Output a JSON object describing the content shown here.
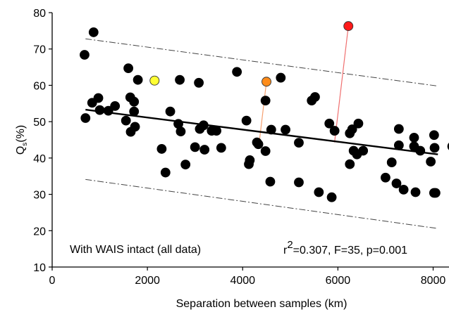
{
  "chart_data": {
    "type": "scatter",
    "xlabel": "Separation between samples (km)",
    "ylabel_main": "Q",
    "ylabel_sub": "s",
    "ylabel_suffix": "(%)",
    "xlim": [
      0,
      8400
    ],
    "ylim": [
      10,
      80
    ],
    "xticks": [
      0,
      2000,
      4000,
      6000,
      8000
    ],
    "yticks": [
      10,
      20,
      30,
      40,
      50,
      60,
      70,
      80
    ],
    "grid": false,
    "panel_label": "With WAIS intact (all data)",
    "stats_r": "r",
    "stats_exp": "2",
    "stats_rest": "=0.307, F=35, p=0.001",
    "regression": {
      "x": [
        700,
        8100
      ],
      "y": [
        53.3,
        41.0
      ]
    },
    "prediction_upper": {
      "x": [
        700,
        8100
      ],
      "y": [
        72.8,
        59.8
      ]
    },
    "prediction_lower": {
      "x": [
        700,
        8100
      ],
      "y": [
        34.1,
        20.6
      ]
    },
    "colors": {
      "points": "#000000",
      "yellow": "#ffff33",
      "orange": "#ff8c1a",
      "red": "#ff1a1a",
      "orange_line": "#f5a070",
      "red_line": "#f07070"
    },
    "highlighted": [
      {
        "x": 2150,
        "y": 61.3,
        "color": "yellow",
        "from": null
      },
      {
        "x": 4500,
        "y": 61.0,
        "color": "orange",
        "from": [
          4350,
          44.5
        ]
      },
      {
        "x": 6220,
        "y": 76.3,
        "color": "red",
        "from": [
          5930,
          44.3
        ]
      }
    ],
    "points": [
      [
        680,
        68.4
      ],
      [
        700,
        51.0
      ],
      [
        870,
        74.6
      ],
      [
        840,
        55.2
      ],
      [
        970,
        56.5
      ],
      [
        1000,
        53.2
      ],
      [
        1180,
        53.0
      ],
      [
        1320,
        54.3
      ],
      [
        1600,
        64.7
      ],
      [
        1550,
        50.3
      ],
      [
        1640,
        56.7
      ],
      [
        1720,
        55.5
      ],
      [
        1650,
        47.2
      ],
      [
        1740,
        48.6
      ],
      [
        1720,
        52.8
      ],
      [
        1800,
        61.5
      ],
      [
        2300,
        42.5
      ],
      [
        2380,
        36.0
      ],
      [
        2480,
        52.8
      ],
      [
        2680,
        61.5
      ],
      [
        2650,
        49.4
      ],
      [
        2700,
        47.3
      ],
      [
        2800,
        38.2
      ],
      [
        3000,
        43.0
      ],
      [
        3080,
        60.7
      ],
      [
        3100,
        48.0
      ],
      [
        3180,
        49.0
      ],
      [
        3200,
        42.3
      ],
      [
        3350,
        47.5
      ],
      [
        3450,
        47.5
      ],
      [
        3550,
        42.8
      ],
      [
        3880,
        63.7
      ],
      [
        4080,
        50.3
      ],
      [
        4130,
        38.3
      ],
      [
        4150,
        39.4
      ],
      [
        4300,
        44.3
      ],
      [
        4330,
        43.8
      ],
      [
        4480,
        55.8
      ],
      [
        4480,
        41.9
      ],
      [
        4580,
        33.5
      ],
      [
        4600,
        47.8
      ],
      [
        4800,
        62.1
      ],
      [
        4900,
        47.8
      ],
      [
        5180,
        44.2
      ],
      [
        5180,
        33.3
      ],
      [
        5450,
        55.8
      ],
      [
        5520,
        56.8
      ],
      [
        5600,
        30.6
      ],
      [
        5820,
        49.5
      ],
      [
        5870,
        29.2
      ],
      [
        5930,
        47.5
      ],
      [
        6250,
        46.8
      ],
      [
        6250,
        38.3
      ],
      [
        6300,
        47.9
      ],
      [
        6330,
        42.0
      ],
      [
        6400,
        41.0
      ],
      [
        6430,
        49.5
      ],
      [
        6530,
        42.0
      ],
      [
        7000,
        34.6
      ],
      [
        7130,
        38.8
      ],
      [
        7230,
        33.0
      ],
      [
        7280,
        48.0
      ],
      [
        7280,
        43.5
      ],
      [
        7380,
        31.3
      ],
      [
        7600,
        45.6
      ],
      [
        7600,
        43.2
      ],
      [
        7630,
        30.6
      ],
      [
        7730,
        42.0
      ],
      [
        7950,
        39.0
      ],
      [
        8020,
        46.3
      ],
      [
        8030,
        42.8
      ],
      [
        8020,
        30.4
      ],
      [
        8050,
        30.4
      ],
      [
        8400,
        43.2
      ]
    ]
  }
}
